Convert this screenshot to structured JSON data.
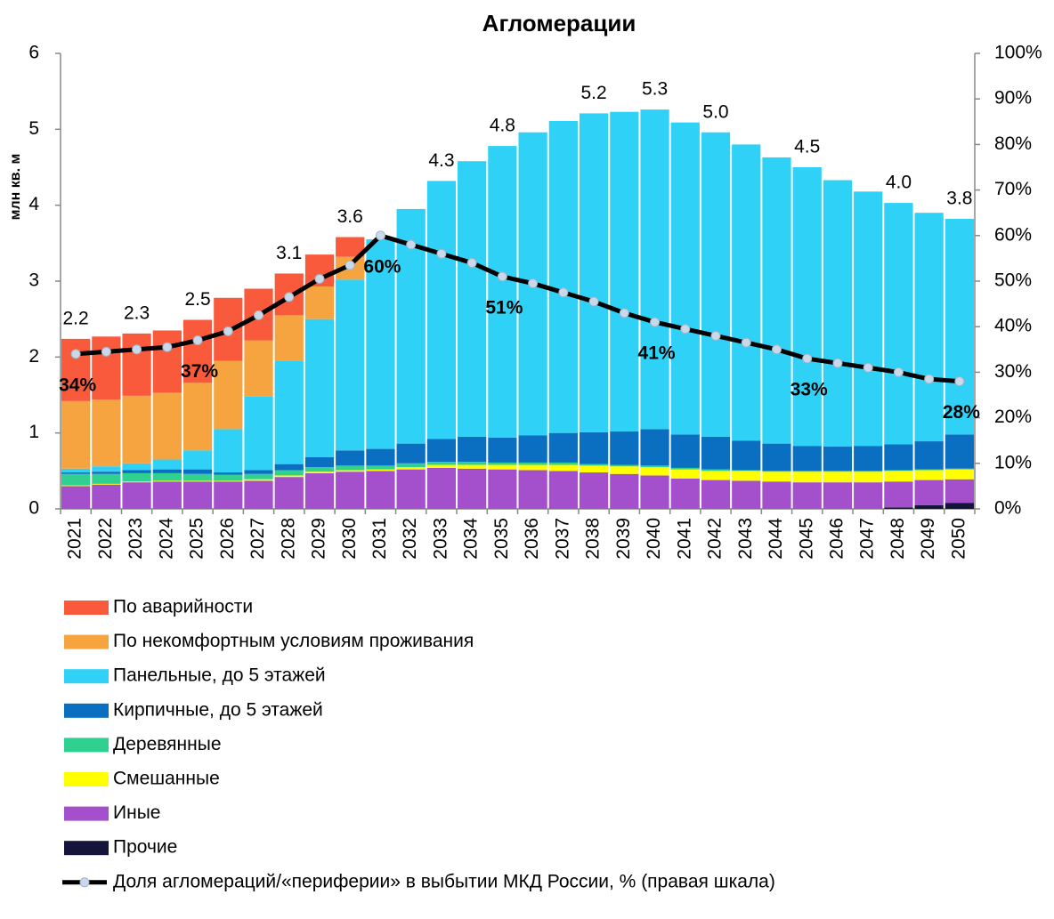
{
  "chart_data": {
    "type": "bar",
    "stacked": true,
    "title": "Агломерации",
    "y_label": "млн кв. м",
    "categories": [
      "2021",
      "2022",
      "2023",
      "2024",
      "2025",
      "2026",
      "2027",
      "2028",
      "2029",
      "2030",
      "2031",
      "2032",
      "2033",
      "2034",
      "2035",
      "2036",
      "2037",
      "2038",
      "2039",
      "2040",
      "2041",
      "2042",
      "2043",
      "2044",
      "2045",
      "2046",
      "2047",
      "2048",
      "2049",
      "2050"
    ],
    "ylim": [
      0,
      6
    ],
    "yticks": [
      0,
      1,
      2,
      3,
      4,
      5,
      6
    ],
    "y2lim": [
      0,
      100
    ],
    "y2ticks": [
      {
        "value": 0,
        "label": "0%"
      },
      {
        "value": 10,
        "label": "10%"
      },
      {
        "value": 20,
        "label": "20%"
      },
      {
        "value": 30,
        "label": "30%"
      },
      {
        "value": 40,
        "label": "40%"
      },
      {
        "value": 50,
        "label": "50%"
      },
      {
        "value": 60,
        "label": "60%"
      },
      {
        "value": 70,
        "label": "70%"
      },
      {
        "value": 80,
        "label": "80%"
      },
      {
        "value": 90,
        "label": "90%"
      },
      {
        "value": 100,
        "label": "100%"
      }
    ],
    "grid": false,
    "legend": "bottom",
    "series": [
      {
        "name": "По аварийности",
        "color": "#fa5a3c",
        "values": [
          0.82,
          0.83,
          0.82,
          0.82,
          0.83,
          0.83,
          0.68,
          0.55,
          0.42,
          0.26,
          0,
          0,
          0,
          0,
          0,
          0,
          0,
          0,
          0,
          0,
          0,
          0,
          0,
          0,
          0,
          0,
          0,
          0,
          0,
          0
        ]
      },
      {
        "name": "По некомфортным условиям проживания",
        "color": "#f5a440",
        "values": [
          0.89,
          0.88,
          0.89,
          0.88,
          0.89,
          0.9,
          0.74,
          0.6,
          0.43,
          0.3,
          0,
          0,
          0,
          0,
          0,
          0,
          0,
          0,
          0,
          0,
          0,
          0,
          0,
          0,
          0,
          0,
          0,
          0,
          0,
          0
        ]
      },
      {
        "name": "Панельные, до 5 этажей",
        "color": "#2fd2f6",
        "values": [
          0.05,
          0.07,
          0.09,
          0.13,
          0.25,
          0.57,
          0.97,
          1.36,
          1.82,
          2.25,
          2.76,
          3.09,
          3.4,
          3.63,
          3.84,
          3.99,
          4.11,
          4.2,
          4.21,
          4.21,
          4.11,
          4.01,
          3.9,
          3.77,
          3.67,
          3.51,
          3.35,
          3.18,
          3.01,
          2.84
        ]
      },
      {
        "name": "Кирпичные, до 5 этажей",
        "color": "#0b6fc1",
        "values": [
          0.02,
          0.03,
          0.04,
          0.05,
          0.06,
          0.03,
          0.05,
          0.08,
          0.13,
          0.2,
          0.22,
          0.26,
          0.3,
          0.33,
          0.33,
          0.36,
          0.39,
          0.42,
          0.44,
          0.48,
          0.44,
          0.43,
          0.39,
          0.36,
          0.33,
          0.32,
          0.33,
          0.34,
          0.37,
          0.45
        ]
      },
      {
        "name": "Деревянные",
        "color": "#30d090",
        "values": [
          0.15,
          0.13,
          0.11,
          0.1,
          0.09,
          0.08,
          0.07,
          0.07,
          0.06,
          0.06,
          0.05,
          0.05,
          0.04,
          0.04,
          0.03,
          0.03,
          0.03,
          0.02,
          0.02,
          0.02,
          0.02,
          0.02,
          0.01,
          0.01,
          0.01,
          0.01,
          0.01,
          0.01,
          0.01,
          0.01
        ]
      },
      {
        "name": "Смешанные",
        "color": "#ffff00",
        "values": [
          0.01,
          0.01,
          0.01,
          0.01,
          0.01,
          0.01,
          0.02,
          0.02,
          0.02,
          0.02,
          0.02,
          0.03,
          0.04,
          0.05,
          0.06,
          0.07,
          0.08,
          0.09,
          0.1,
          0.11,
          0.12,
          0.12,
          0.13,
          0.13,
          0.14,
          0.14,
          0.14,
          0.14,
          0.13,
          0.13
        ]
      },
      {
        "name": "Иные",
        "color": "#a450cc",
        "values": [
          0.3,
          0.32,
          0.35,
          0.36,
          0.36,
          0.36,
          0.37,
          0.42,
          0.47,
          0.49,
          0.5,
          0.52,
          0.54,
          0.53,
          0.52,
          0.51,
          0.5,
          0.48,
          0.46,
          0.44,
          0.4,
          0.38,
          0.37,
          0.36,
          0.35,
          0.35,
          0.35,
          0.34,
          0.33,
          0.31
        ]
      },
      {
        "name": "Прочие",
        "color": "#15143a",
        "values": [
          0,
          0,
          0,
          0,
          0,
          0,
          0,
          0,
          0,
          0,
          0,
          0,
          0,
          0,
          0,
          0,
          0,
          0,
          0,
          0,
          0,
          0,
          0,
          0,
          0,
          0,
          0,
          0.02,
          0.05,
          0.08
        ]
      },
      {
        "name": "Доля агломераций/«периферии» в выбытии МКД России, % (правая шкала)",
        "type": "line",
        "axis": "y2",
        "color": "#000000",
        "marker_color": "#c9d9ea",
        "values": [
          34,
          34.5,
          35,
          35.5,
          37,
          39,
          42.5,
          46.5,
          50.5,
          53.5,
          60,
          58,
          56,
          54,
          51,
          49.5,
          47.5,
          45.5,
          43,
          41,
          39.5,
          38,
          36.5,
          35,
          33,
          32,
          31,
          30,
          28.5,
          28
        ],
        "value_labels": [
          "34%",
          null,
          null,
          null,
          "37%",
          null,
          null,
          null,
          null,
          null,
          "60%",
          null,
          null,
          null,
          "51%",
          null,
          null,
          null,
          null,
          "41%",
          null,
          null,
          null,
          null,
          "33%",
          null,
          null,
          null,
          null,
          "28%"
        ]
      }
    ],
    "annotations": [
      {
        "category": "2021",
        "text": "2.2"
      },
      {
        "category": "2023",
        "text": "2.3"
      },
      {
        "category": "2025",
        "text": "2.5"
      },
      {
        "category": "2028",
        "text": "3.1"
      },
      {
        "category": "2030",
        "text": "3.6"
      },
      {
        "category": "2033",
        "text": "4.3"
      },
      {
        "category": "2035",
        "text": "4.8"
      },
      {
        "category": "2038",
        "text": "5.2"
      },
      {
        "category": "2040",
        "text": "5.3"
      },
      {
        "category": "2042",
        "text": "5.0"
      },
      {
        "category": "2045",
        "text": "4.5"
      },
      {
        "category": "2048",
        "text": "4.0"
      },
      {
        "category": "2050",
        "text": "3.8"
      }
    ]
  }
}
